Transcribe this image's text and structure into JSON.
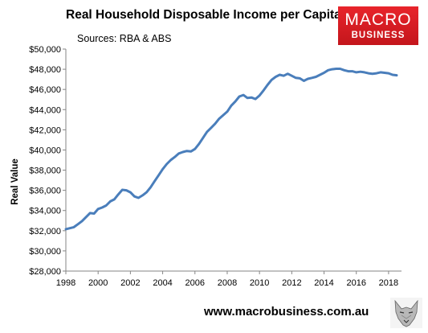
{
  "header": {
    "title": "Real Household Disposable Income per Capita",
    "subtitle": "Sources: RBA & ABS"
  },
  "logo": {
    "line1": "MACRO",
    "line2": "BUSINESS",
    "color": "#d71920"
  },
  "footer": {
    "url": "www.macrobusiness.com.au",
    "mascot_icon": "wolf-icon"
  },
  "chart_data": {
    "type": "line",
    "ylabel": "Real Value",
    "xlabel": "",
    "xlim": [
      1998,
      2018.8
    ],
    "ylim": [
      28000,
      50000
    ],
    "x_ticks": [
      1998,
      2000,
      2002,
      2004,
      2006,
      2008,
      2010,
      2012,
      2014,
      2016,
      2018
    ],
    "y_ticks": [
      28000,
      30000,
      32000,
      34000,
      36000,
      38000,
      40000,
      42000,
      44000,
      46000,
      48000,
      50000
    ],
    "y_tick_labels": [
      "$28,000",
      "$30,000",
      "$32,000",
      "$34,000",
      "$36,000",
      "$38,000",
      "$40,000",
      "$42,000",
      "$44,000",
      "$46,000",
      "$48,000",
      "$50,000"
    ],
    "grid": false,
    "line_color": "#4a7ebb",
    "series": [
      {
        "x": [
          1998.0,
          1998.25,
          1998.5,
          1998.75,
          1999.0,
          1999.25,
          1999.5,
          1999.75,
          2000.0,
          2000.25,
          2000.5,
          2000.75,
          2001.0,
          2001.25,
          2001.5,
          2001.75,
          2002.0,
          2002.25,
          2002.5,
          2002.75,
          2003.0,
          2003.25,
          2003.5,
          2003.75,
          2004.0,
          2004.25,
          2004.5,
          2004.75,
          2005.0,
          2005.25,
          2005.5,
          2005.75,
          2006.0,
          2006.25,
          2006.5,
          2006.75,
          2007.0,
          2007.25,
          2007.5,
          2007.75,
          2008.0,
          2008.25,
          2008.5,
          2008.75,
          2009.0,
          2009.25,
          2009.5,
          2009.75,
          2010.0,
          2010.25,
          2010.5,
          2010.75,
          2011.0,
          2011.25,
          2011.5,
          2011.75,
          2012.0,
          2012.25,
          2012.5,
          2012.75,
          2013.0,
          2013.25,
          2013.5,
          2013.75,
          2014.0,
          2014.25,
          2014.5,
          2014.75,
          2015.0,
          2015.25,
          2015.5,
          2015.75,
          2016.0,
          2016.25,
          2016.5,
          2016.75,
          2017.0,
          2017.25,
          2017.5,
          2017.75,
          2018.0,
          2018.25,
          2018.5
        ],
        "y": [
          32150,
          32250,
          32350,
          32650,
          32950,
          33350,
          33750,
          33700,
          34150,
          34300,
          34500,
          34900,
          35100,
          35600,
          36050,
          36000,
          35800,
          35400,
          35250,
          35500,
          35800,
          36300,
          36900,
          37500,
          38100,
          38600,
          39000,
          39300,
          39650,
          39800,
          39900,
          39850,
          40100,
          40600,
          41200,
          41800,
          42200,
          42600,
          43100,
          43450,
          43800,
          44400,
          44800,
          45300,
          45450,
          45150,
          45200,
          45050,
          45400,
          45900,
          46450,
          46950,
          47250,
          47450,
          47350,
          47550,
          47350,
          47150,
          47100,
          46850,
          47050,
          47150,
          47250,
          47450,
          47650,
          47900,
          48000,
          48050,
          48050,
          47900,
          47800,
          47800,
          47700,
          47750,
          47700,
          47600,
          47550,
          47600,
          47700,
          47650,
          47600,
          47450,
          47400
        ]
      }
    ]
  }
}
